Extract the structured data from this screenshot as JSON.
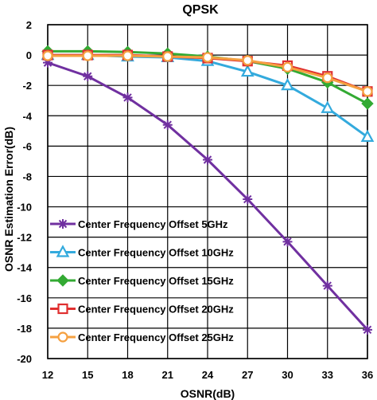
{
  "chart_data": {
    "type": "line",
    "title": "QPSK",
    "xlabel": "OSNR(dB)",
    "ylabel": "OSNR Estimation Error(dB)",
    "xlim": [
      12,
      36
    ],
    "ylim": [
      -20,
      2
    ],
    "xticks": [
      12,
      15,
      18,
      21,
      24,
      27,
      30,
      33,
      36
    ],
    "yticks": [
      2,
      0,
      -2,
      -4,
      -6,
      -8,
      -10,
      -12,
      -14,
      -16,
      -18,
      -20
    ],
    "grid": true,
    "legend_position": "bottom-left",
    "x": [
      12,
      15,
      18,
      21,
      24,
      27,
      30,
      33,
      36
    ],
    "series": [
      {
        "name": "Center Frequency Offset 5GHz",
        "color": "#7030A0",
        "marker": "star",
        "values": [
          -0.5,
          -1.4,
          -2.8,
          -4.6,
          -6.9,
          -9.5,
          -12.3,
          -15.2,
          -18.1
        ]
      },
      {
        "name": "Center Frequency Offset 10GHz",
        "color": "#33AADD",
        "marker": "triangle",
        "values": [
          0.0,
          0.0,
          -0.1,
          -0.15,
          -0.4,
          -1.1,
          -2.0,
          -3.5,
          -5.4
        ]
      },
      {
        "name": "Center Frequency Offset 15GHz",
        "color": "#33AA33",
        "marker": "diamond",
        "values": [
          0.25,
          0.25,
          0.2,
          0.1,
          -0.1,
          -0.4,
          -0.9,
          -1.8,
          -3.2
        ]
      },
      {
        "name": "Center Frequency Offset 20GHz",
        "color": "#E03030",
        "marker": "square",
        "values": [
          0.0,
          0.0,
          0.0,
          -0.1,
          -0.2,
          -0.4,
          -0.7,
          -1.4,
          -2.4
        ]
      },
      {
        "name": "Center Frequency Offset 25GHz",
        "color": "#F5A040",
        "marker": "circle",
        "values": [
          -0.05,
          -0.05,
          -0.05,
          -0.1,
          -0.15,
          -0.35,
          -0.8,
          -1.5,
          -2.4
        ]
      }
    ]
  }
}
